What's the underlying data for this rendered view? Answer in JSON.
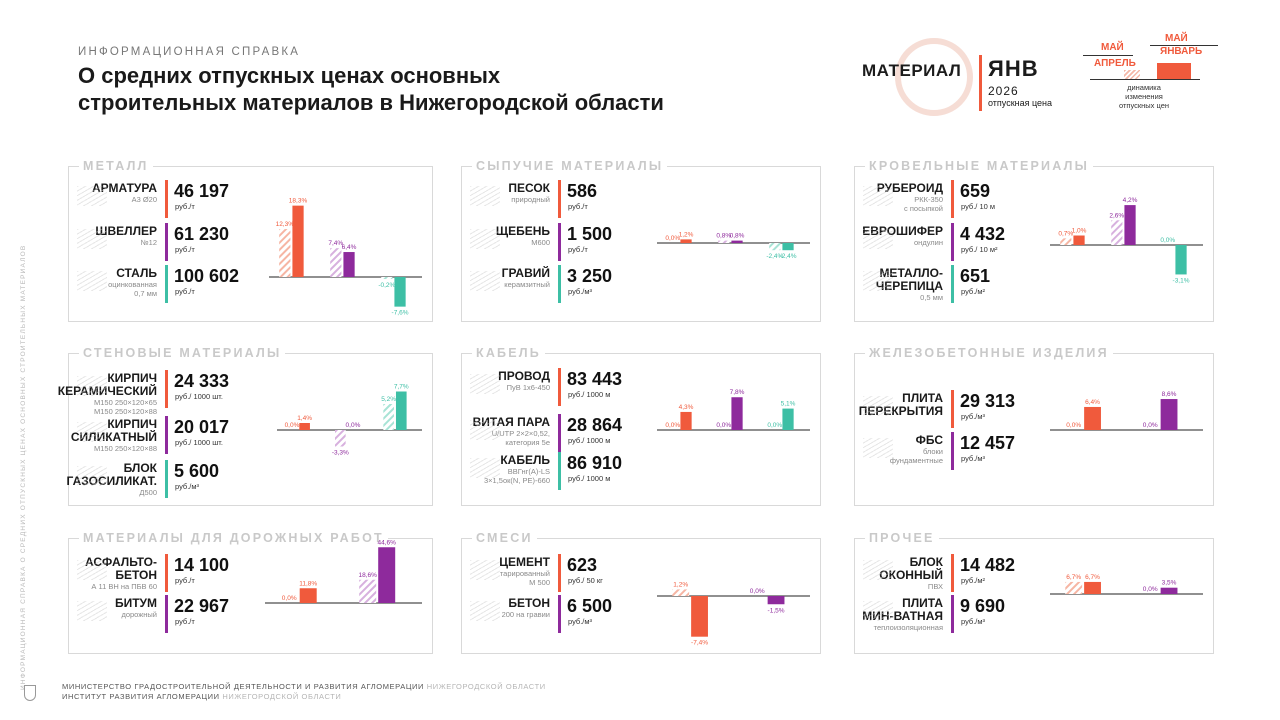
{
  "side_text": "ИНФОРМАЦИОННАЯ СПРАВКА О СРЕДНИХ ОТПУСКНЫХ ЦЕНАХ ОСНОВНЫХ СТРОИТЕЛЬНЫХ МАТЕРИАЛОВ",
  "header": {
    "kicker": "ИНФОРМАЦИОННАЯ СПРАВКА",
    "title_line1": "О средних отпускных ценах основных",
    "title_line2": "строительных материалов в Нижегородской области"
  },
  "legend": {
    "material": "МАТЕРИАЛ",
    "month": "ЯНВ",
    "year": "2026",
    "price_caption": "отпускная цена",
    "may_label_1": "МАЙ",
    "april_label": "АПРЕЛЬ",
    "may_label_2": "МАЙ",
    "january_label": "ЯНВАРЬ",
    "dynamics_line1": "динамика изменения",
    "dynamics_line2": "отпускных цен"
  },
  "colors": {
    "red": "#f05a3c",
    "purple": "#8e2a9c",
    "teal": "#3dbfa5",
    "hatch_red": "#f6b5a3",
    "hatch_purple": "#d7b0de",
    "hatch_teal": "#a7e3d5"
  },
  "panels": [
    {
      "id": "metal",
      "title": "МЕТАЛЛ",
      "items": [
        {
          "name": [
            "АРМАТУРА"
          ],
          "sub": [
            "А3 Ø20"
          ],
          "price": "46 197",
          "unit": "руб./т",
          "color": "red",
          "icon": "rebar-icon"
        },
        {
          "name": [
            "ШВЕЛЛЕР"
          ],
          "sub": [
            "№12"
          ],
          "price": "61 230",
          "unit": "руб./т",
          "color": "purple",
          "icon": "channel-beam-icon"
        },
        {
          "name": [
            "СТАЛЬ"
          ],
          "sub": [
            "оцинкованная",
            "0,7 мм"
          ],
          "price": "100 602",
          "unit": "руб./т",
          "color": "teal",
          "icon": "steel-sheet-icon"
        }
      ]
    },
    {
      "id": "bulk",
      "title": "СЫПУЧИЕ МАТЕРИАЛЫ",
      "items": [
        {
          "name": [
            "ПЕСОК"
          ],
          "sub": [
            "природный"
          ],
          "price": "586",
          "unit": "руб./т",
          "color": "red",
          "icon": "sand-pile-icon"
        },
        {
          "name": [
            "ЩЕБЕНЬ"
          ],
          "sub": [
            "М600"
          ],
          "price": "1 500",
          "unit": "руб./т",
          "color": "purple",
          "icon": "gravel-pile-icon"
        },
        {
          "name": [
            "ГРАВИЙ"
          ],
          "sub": [
            "керамзитный"
          ],
          "price": "3 250",
          "unit": "руб./м³",
          "color": "teal",
          "icon": "expanded-clay-icon"
        }
      ]
    },
    {
      "id": "roof",
      "title": "КРОВЕЛЬНЫЕ МАТЕРИАЛЫ",
      "items": [
        {
          "name": [
            "РУБЕРОИД"
          ],
          "sub": [
            "РКК-350",
            "с посыпкой"
          ],
          "price": "659",
          "unit": "руб./ 10 м",
          "color": "red",
          "icon": "roofing-roll-icon"
        },
        {
          "name": [
            "ЕВРОШИФЕР"
          ],
          "sub": [
            "ондулин"
          ],
          "price": "4 432",
          "unit": "руб./ 10 м²",
          "color": "purple",
          "icon": "corrugated-sheet-icon"
        },
        {
          "name": [
            "МЕТАЛЛО-",
            "ЧЕРЕПИЦА"
          ],
          "sub": [
            "0,5 мм"
          ],
          "price": "651",
          "unit": "руб./м²",
          "color": "teal",
          "icon": "metal-tile-icon"
        }
      ]
    },
    {
      "id": "wall",
      "title": "СТЕНОВЫЕ МАТЕРИАЛЫ",
      "items": [
        {
          "name": [
            "КИРПИЧ",
            "КЕРАМИЧЕСКИЙ"
          ],
          "sub": [
            "М150 250×120×65",
            "М150 250×120×88"
          ],
          "price": "24 333",
          "unit": "руб./ 1000 шт.",
          "color": "red",
          "icon": "ceramic-brick-icon"
        },
        {
          "name": [
            "КИРПИЧ",
            "СИЛИКАТНЫЙ"
          ],
          "sub": [
            "М150 250×120×88"
          ],
          "price": "20 017",
          "unit": "руб./ 1000 шт.",
          "color": "purple",
          "icon": "silicate-brick-icon"
        },
        {
          "name": [
            "БЛОК",
            "ГАЗОСИЛИКАТ."
          ],
          "sub": [
            "Д500"
          ],
          "price": "5 600",
          "unit": "руб./м³",
          "color": "teal",
          "icon": "gas-block-icon"
        }
      ]
    },
    {
      "id": "cable",
      "title": "КАБЕЛЬ",
      "items": [
        {
          "name": [
            "ПРОВОД"
          ],
          "sub": [
            "ПуВ 1х6-450"
          ],
          "price": "83 443",
          "unit": "руб./ 1000 м",
          "color": "red",
          "icon": "wire-icon"
        },
        {
          "name": [
            "ВИТАЯ ПАРА"
          ],
          "sub": [
            "U/UTP 2×2×0,52,",
            "категория 5е"
          ],
          "price": "28 864",
          "unit": "руб./ 1000 м",
          "color": "purple",
          "icon": "twisted-pair-icon"
        },
        {
          "name": [
            "КАБЕЛЬ"
          ],
          "sub": [
            "ВВГнг(А)-LS",
            "3×1,5ок(N, PE)-660"
          ],
          "price": "86 910",
          "unit": "руб./ 1000 м",
          "color": "teal",
          "icon": "cable-icon"
        }
      ]
    },
    {
      "id": "concrete",
      "title": "ЖЕЛЕЗОБЕТОННЫЕ ИЗДЕЛИЯ",
      "items": [
        {
          "name": [
            "ПЛИТА",
            "ПЕРЕКРЫТИЯ"
          ],
          "sub": [],
          "price": "29 313",
          "unit": "руб./м³",
          "color": "red",
          "icon": "floor-slab-icon"
        },
        {
          "name": [
            "ФБС"
          ],
          "sub": [
            "блоки",
            "фундаментные"
          ],
          "price": "12 457",
          "unit": "руб./м³",
          "color": "purple",
          "icon": "foundation-block-icon"
        }
      ]
    },
    {
      "id": "road",
      "title": "МАТЕРИАЛЫ ДЛЯ ДОРОЖНЫХ РАБОТ",
      "items": [
        {
          "name": [
            "АСФАЛЬТО-",
            "БЕТОН"
          ],
          "sub": [
            "А 11 ВН на ПБВ 60"
          ],
          "price": "14 100",
          "unit": "руб./т",
          "color": "red",
          "icon": "asphalt-icon"
        },
        {
          "name": [
            "БИТУМ"
          ],
          "sub": [
            "дорожный"
          ],
          "price": "22 967",
          "unit": "руб./т",
          "color": "purple",
          "icon": "bitumen-barrel-icon"
        }
      ]
    },
    {
      "id": "mixes",
      "title": "СМЕСИ",
      "items": [
        {
          "name": [
            "ЦЕМЕНТ"
          ],
          "sub": [
            "тарированный",
            "М 500"
          ],
          "price": "623",
          "unit": "руб./ 50 кг",
          "color": "red",
          "icon": "cement-bag-icon"
        },
        {
          "name": [
            "БЕТОН"
          ],
          "sub": [
            "200 на гравии"
          ],
          "price": "6 500",
          "unit": "руб./м³",
          "color": "purple",
          "icon": "concrete-mixer-icon"
        }
      ]
    },
    {
      "id": "other",
      "title": "ПРОЧЕЕ",
      "items": [
        {
          "name": [
            "БЛОК",
            "ОКОННЫЙ"
          ],
          "sub": [
            "ПВХ"
          ],
          "price": "14 482",
          "unit": "руб./м²",
          "color": "red",
          "icon": "window-icon"
        },
        {
          "name": [
            "ПЛИТА",
            "МИН-ВАТНАЯ"
          ],
          "sub": [
            "теплоизоляционная"
          ],
          "price": "9 690",
          "unit": "руб./м³",
          "color": "purple",
          "icon": "mineral-wool-icon"
        }
      ]
    }
  ],
  "chart_data": [
    {
      "panel": "metal",
      "type": "bar",
      "title": "МЕТАЛЛ",
      "series": [
        {
          "name": "АРМАТУРА",
          "color": "red",
          "may_april": 12.3,
          "may_april_label": "12,3%",
          "may_january": 18.3,
          "may_january_label": "18,3%"
        },
        {
          "name": "ШВЕЛЛЕР",
          "color": "purple",
          "may_april": 7.4,
          "may_april_label": "7,4%",
          "may_january": 6.4,
          "may_january_label": "6,4%"
        },
        {
          "name": "СТАЛЬ",
          "color": "teal",
          "may_april": -0.2,
          "may_april_label": "-0,2%",
          "may_january": -7.6,
          "may_january_label": "-7,6%"
        }
      ]
    },
    {
      "panel": "bulk",
      "type": "bar",
      "title": "СЫПУЧИЕ МАТЕРИАЛЫ",
      "series": [
        {
          "name": "ПЕСОК",
          "color": "red",
          "may_april": 0.0,
          "may_april_label": "0,0%",
          "may_january": 1.2,
          "may_january_label": "1,2%"
        },
        {
          "name": "ЩЕБЕНЬ",
          "color": "purple",
          "may_april": 0.8,
          "may_april_label": "0,8%",
          "may_january": 0.8,
          "may_january_label": "0,8%"
        },
        {
          "name": "ГРАВИЙ",
          "color": "teal",
          "may_april": -2.4,
          "may_april_label": "-2,4%",
          "may_january": -2.4,
          "may_january_label": "-2,4%"
        }
      ]
    },
    {
      "panel": "roof",
      "type": "bar",
      "title": "КРОВЕЛЬНЫЕ МАТЕРИАЛЫ",
      "series": [
        {
          "name": "РУБЕРОИД",
          "color": "red",
          "may_april": 0.7,
          "may_april_label": "0,7%",
          "may_january": 1.0,
          "may_january_label": "1,0%"
        },
        {
          "name": "ЕВРОШИФЕР",
          "color": "purple",
          "may_april": 2.6,
          "may_april_label": "2,6%",
          "may_january": 4.2,
          "may_january_label": "4,2%"
        },
        {
          "name": "МЕТАЛЛО-ЧЕРЕПИЦА",
          "color": "teal",
          "may_april": 0.0,
          "may_april_label": "0,0%",
          "may_january": -3.1,
          "may_january_label": "-3,1%"
        }
      ]
    },
    {
      "panel": "wall",
      "type": "bar",
      "title": "СТЕНОВЫЕ МАТЕРИАЛЫ",
      "series": [
        {
          "name": "КИРПИЧ КЕРАМИЧЕСКИЙ",
          "color": "red",
          "may_april": 0.0,
          "may_april_label": "0,0%",
          "may_january": 1.4,
          "may_january_label": "1,4%"
        },
        {
          "name": "КИРПИЧ СИЛИКАТНЫЙ",
          "color": "purple",
          "may_april": -3.3,
          "may_april_label": "-3,3%",
          "may_january": 0.0,
          "may_january_label": "0,0%"
        },
        {
          "name": "БЛОК ГАЗОСИЛИКАТ.",
          "color": "teal",
          "may_april": 5.2,
          "may_april_label": "5,2%",
          "may_january": 7.7,
          "may_january_label": "7,7%"
        }
      ]
    },
    {
      "panel": "cable",
      "type": "bar",
      "title": "КАБЕЛЬ",
      "series": [
        {
          "name": "ПРОВОД",
          "color": "red",
          "may_april": 0.0,
          "may_april_label": "0,0%",
          "may_january": 4.3,
          "may_january_label": "4,3%"
        },
        {
          "name": "ВИТАЯ ПАРА",
          "color": "purple",
          "may_april": 0.0,
          "may_april_label": "0,0%",
          "may_january": 7.8,
          "may_january_label": "7,8%"
        },
        {
          "name": "КАБЕЛЬ",
          "color": "teal",
          "may_april": 0.0,
          "may_april_label": "0,0%",
          "may_january": 5.1,
          "may_january_label": "5,1%"
        }
      ]
    },
    {
      "panel": "concrete",
      "type": "bar",
      "title": "ЖЕЛЕЗОБЕТОННЫЕ ИЗДЕЛИЯ",
      "series": [
        {
          "name": "ПЛИТА ПЕРЕКРЫТИЯ",
          "color": "red",
          "may_april": 0.0,
          "may_april_label": "0,0%",
          "may_january": 6.4,
          "may_january_label": "6,4%"
        },
        {
          "name": "ФБС",
          "color": "purple",
          "may_april": 0.0,
          "may_april_label": "0,0%",
          "may_january": 8.6,
          "may_january_label": "8,6%"
        }
      ]
    },
    {
      "panel": "road",
      "type": "bar",
      "title": "МАТЕРИАЛЫ ДЛЯ ДОРОЖНЫХ РАБОТ",
      "series": [
        {
          "name": "АСФАЛЬТО-БЕТОН",
          "color": "red",
          "may_april": 0.0,
          "may_april_label": "0,0%",
          "may_january": 11.8,
          "may_january_label": "11,8%"
        },
        {
          "name": "БИТУМ",
          "color": "purple",
          "may_april": 18.6,
          "may_april_label": "18,6%",
          "may_january": 44.6,
          "may_january_label": "44,6%"
        }
      ]
    },
    {
      "panel": "mixes",
      "type": "bar",
      "title": "СМЕСИ",
      "series": [
        {
          "name": "ЦЕМЕНТ",
          "color": "red",
          "may_april": 1.2,
          "may_april_label": "1,2%",
          "may_january": -7.4,
          "may_january_label": "-7,4%"
        },
        {
          "name": "БЕТОН",
          "color": "purple",
          "may_april": 0.0,
          "may_april_label": "0,0%",
          "may_january": -1.5,
          "may_january_label": "-1,5%"
        }
      ]
    },
    {
      "panel": "other",
      "type": "bar",
      "title": "ПРОЧЕЕ",
      "series": [
        {
          "name": "БЛОК ОКОННЫЙ",
          "color": "red",
          "may_april": 6.7,
          "may_april_label": "6,7%",
          "may_january": 6.7,
          "may_january_label": "6,7%"
        },
        {
          "name": "ПЛИТА МИН-ВАТНАЯ",
          "color": "purple",
          "may_april": 0.0,
          "may_april_label": "0,0%",
          "may_january": 3.5,
          "may_january_label": "3,5%"
        }
      ]
    }
  ],
  "footer": {
    "line1_main": "МИНИСТЕРСТВО ГРАДОСТРОИТЕЛЬНОЙ ДЕЯТЕЛЬНОСТИ И РАЗВИТИЯ АГЛОМЕРАЦИИ",
    "line1_light": "НИЖЕГОРОДСКОЙ ОБЛАСТИ",
    "line2_main": "ИНСТИТУТ РАЗВИТИЯ АГЛОМЕРАЦИИ",
    "line2_light": "НИЖЕГОРОДСКОЙ ОБЛАСТИ"
  }
}
